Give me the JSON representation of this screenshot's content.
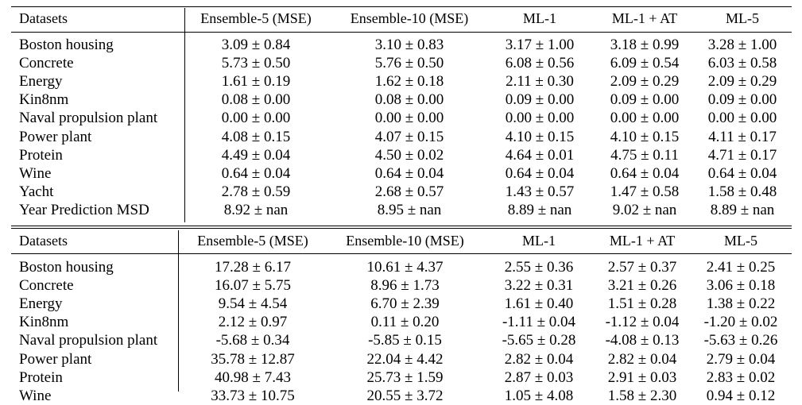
{
  "table1": {
    "headers": [
      "Datasets",
      "Ensemble-5 (MSE)",
      "Ensemble-10 (MSE)",
      "ML-1",
      "ML-1 + AT",
      "ML-5"
    ],
    "rows": [
      [
        "Boston housing",
        "3.09 ± 0.84",
        "3.10 ± 0.83",
        "3.17 ± 1.00",
        "3.18 ± 0.99",
        "3.28 ± 1.00"
      ],
      [
        "Concrete",
        "5.73 ± 0.50",
        "5.76 ± 0.50",
        "6.08 ± 0.56",
        "6.09 ± 0.54",
        "6.03 ± 0.58"
      ],
      [
        "Energy",
        "1.61 ± 0.19",
        "1.62 ± 0.18",
        "2.11 ± 0.30",
        "2.09 ± 0.29",
        "2.09 ± 0.29"
      ],
      [
        "Kin8nm",
        "0.08 ± 0.00",
        "0.08 ± 0.00",
        "0.09 ± 0.00",
        "0.09 ± 0.00",
        "0.09 ± 0.00"
      ],
      [
        "Naval propulsion plant",
        "0.00 ± 0.00",
        "0.00 ± 0.00",
        "0.00 ± 0.00",
        "0.00 ± 0.00",
        "0.00 ± 0.00"
      ],
      [
        "Power plant",
        "4.08 ± 0.15",
        "4.07 ± 0.15",
        "4.10 ± 0.15",
        "4.10 ± 0.15",
        "4.11 ± 0.17"
      ],
      [
        "Protein",
        "4.49 ± 0.04",
        "4.50 ± 0.02",
        "4.64 ± 0.01",
        "4.75 ± 0.11",
        "4.71 ± 0.17"
      ],
      [
        "Wine",
        "0.64 ± 0.04",
        "0.64 ± 0.04",
        "0.64 ± 0.04",
        "0.64 ± 0.04",
        "0.64 ± 0.04"
      ],
      [
        "Yacht",
        "2.78 ± 0.59",
        "2.68 ± 0.57",
        "1.43 ± 0.57",
        "1.47 ± 0.58",
        "1.58 ± 0.48"
      ],
      [
        "Year Prediction MSD",
        "8.92 ± nan",
        "8.95 ± nan",
        "8.89 ± nan",
        "9.02 ± nan",
        "8.89 ± nan"
      ]
    ]
  },
  "table2": {
    "headers": [
      "Datasets",
      "Ensemble-5 (MSE)",
      "Ensemble-10 (MSE)",
      "ML-1",
      "ML-1 + AT",
      "ML-5"
    ],
    "rows": [
      [
        "Boston housing",
        "17.28 ± 6.17",
        "10.61 ± 4.37",
        "2.55 ± 0.36",
        "2.57 ± 0.37",
        "2.41 ± 0.25"
      ],
      [
        "Concrete",
        "16.07 ± 5.75",
        "8.96 ± 1.73",
        "3.22 ± 0.31",
        "3.21 ± 0.26",
        "3.06 ± 0.18"
      ],
      [
        "Energy",
        "9.54 ± 4.54",
        "6.70 ± 2.39",
        "1.61 ± 0.40",
        "1.51 ± 0.28",
        "1.38 ± 0.22"
      ],
      [
        "Kin8nm",
        "2.12 ± 0.97",
        "0.11 ± 0.20",
        "-1.11 ± 0.04",
        "-1.12 ± 0.04",
        "-1.20 ± 0.02"
      ],
      [
        "Naval propulsion plant",
        "-5.68 ± 0.34",
        "-5.85 ± 0.15",
        "-5.65 ± 0.28",
        "-4.08 ± 0.13",
        "-5.63 ± 0.26"
      ],
      [
        "Power plant",
        "35.78 ± 12.87",
        "22.04 ± 4.42",
        "2.82 ± 0.04",
        "2.82 ± 0.04",
        "2.79 ± 0.04"
      ],
      [
        "Protein",
        "40.98 ± 7.43",
        "25.73 ± 1.59",
        "2.87 ± 0.03",
        "2.91 ± 0.03",
        "2.83 ± 0.02"
      ],
      [
        "Wine",
        "33.73 ± 10.75",
        "20.55 ± 3.72",
        "1.05 ± 4.08",
        "1.58 ± 2.30",
        "0.94 ± 0.12"
      ]
    ]
  }
}
